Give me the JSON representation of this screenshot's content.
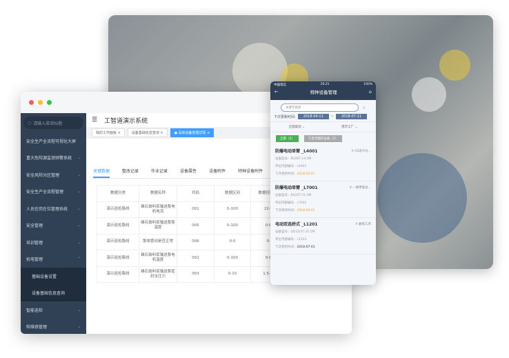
{
  "window": {
    "title": "工智道演示系统",
    "search_placeholder": "请输入菜单标题",
    "menu": [
      {
        "label": "安全生产全流程可视化大屏"
      },
      {
        "label": "重大危险源监测预警系统"
      },
      {
        "label": "安全风险分区管理"
      },
      {
        "label": "安全生产全流程管理"
      },
      {
        "label": "人员在岗在位管理系统"
      },
      {
        "label": "安全管理"
      },
      {
        "label": "培训管理"
      },
      {
        "label": "机电管理"
      },
      {
        "label": "基础设备设置"
      },
      {
        "label": "设备基础信息查询"
      },
      {
        "label": "智能巡检"
      },
      {
        "label": "检维修管理"
      }
    ],
    "tags": [
      "我的工作面板",
      "设备基础信息查询",
      "具体设备管理详情"
    ],
    "tabs": [
      "关键数据",
      "整改记录",
      "作业记录",
      "设备属性",
      "设备附件",
      "特种设备附件"
    ],
    "table": {
      "headers": [
        "数据分类",
        "数据名称",
        "代码",
        "数据区间",
        "数据控制区间"
      ],
      "rows": [
        [
          "演示巡检路线",
          "磷石膏料浆输送泵电机电流",
          "001",
          "0-100",
          "22-58"
        ],
        [
          "演示巡检路线",
          "磷石膏料浆输送泵泵温度",
          "005",
          "0-100",
          "0-65"
        ],
        [
          "演示巡检路线",
          "泵体震动是否正常",
          "006",
          "0-0",
          "0-0"
        ],
        [
          "演示巡检路线",
          "磷石膏料浆输送泵电机温度",
          "002",
          "0-100",
          "0-85"
        ],
        [
          "演示巡检路线",
          "磷石膏料浆输送泵密封水压力",
          "003",
          "0-10",
          "1.5-3.5"
        ]
      ]
    }
  },
  "phone": {
    "carrier": "中国电信",
    "time": "20:21",
    "battery": "100%",
    "title": "特种设备管理",
    "search_placeholder": "关键字搜索",
    "date_label": "下次更新时间:",
    "date_from": "2018-04-11",
    "date_sep": "~",
    "date_to": "2018-07-11",
    "filter_type": "全部类别",
    "filter_plant": "南京工厂",
    "btn_all": "全部（3）",
    "btn_expiring": "只显示临检设备（2）",
    "items": [
      {
        "name": "防爆电动单臂 _L4001",
        "location": "C0泥冷分...",
        "model": "设备型号：BLDST-14.5M",
        "code": "单位内部编号：L4001",
        "next_label": "下次更新时间：",
        "next": "2018-05-01",
        "warn": true
      },
      {
        "name": "防爆电动单臂 _L7001",
        "location": "一期甲氨合...",
        "model": "设备型号：BLDST-22.5M",
        "code": "单位内部编号：L7001",
        "next_label": "下次更新时间：",
        "next": "2018-06-01",
        "warn": true
      },
      {
        "name": "电动双选桥式 _L1201",
        "location": "磨煤工序",
        "model": "设备型号：QD32/5T-25.5M",
        "code": "单位内部编号：L1201",
        "next_label": "下次更新时间：",
        "next": "2018-07-01",
        "warn": false
      }
    ]
  },
  "colors": {
    "sidebar": "#304156",
    "accent": "#409eff",
    "phone_header": "#2f3f56",
    "warn": "#f0a030"
  }
}
